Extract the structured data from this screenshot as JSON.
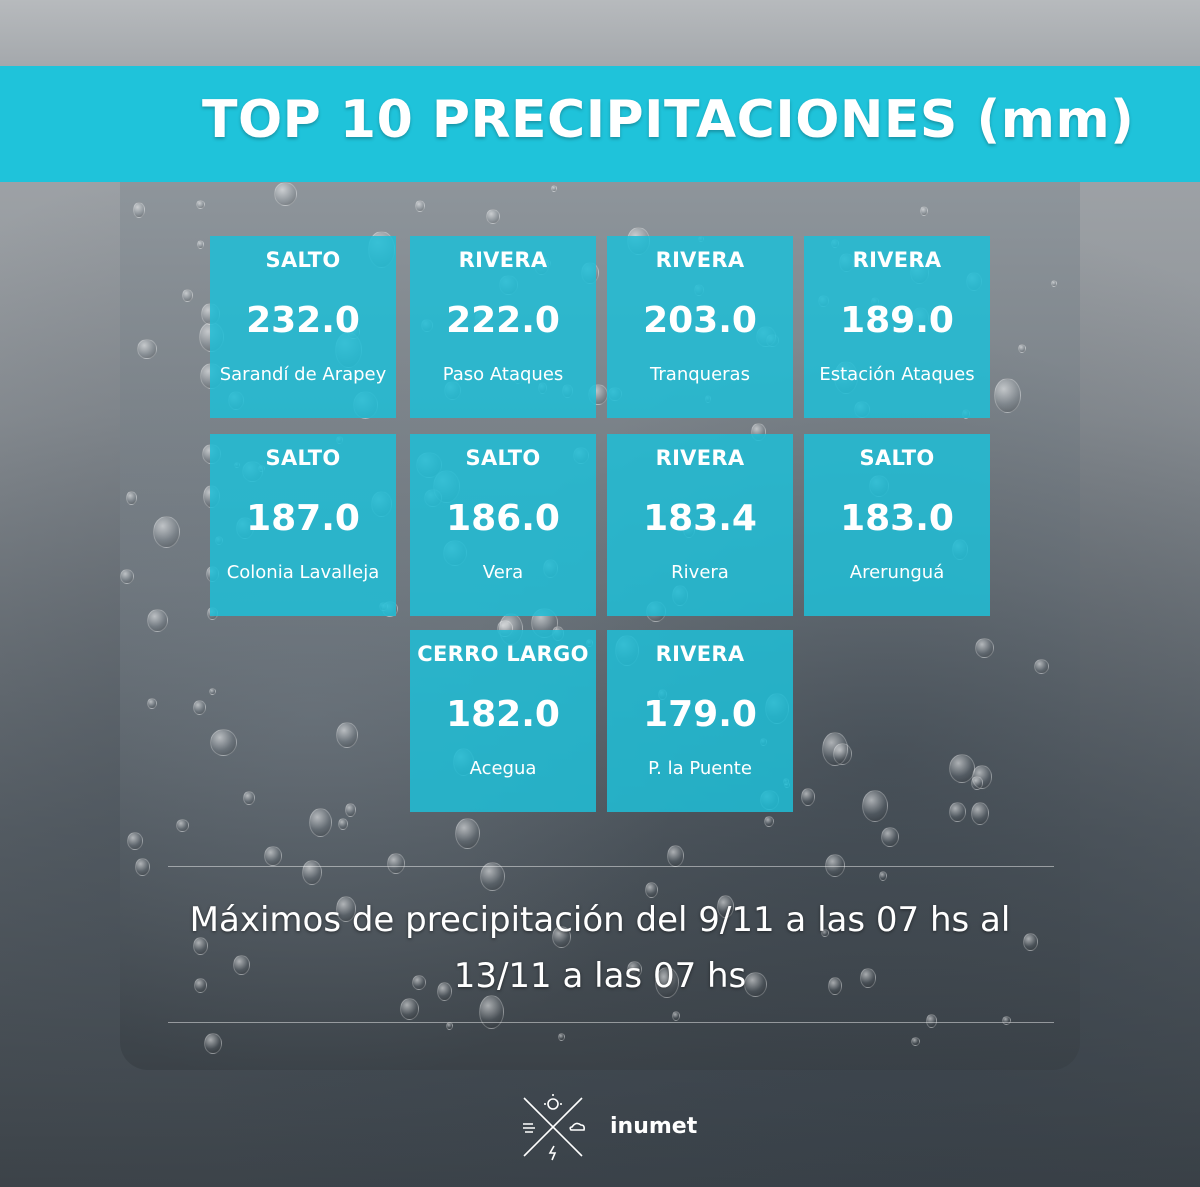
{
  "title": "TOP 10 PRECIPITACIONES (mm)",
  "stations": [
    {
      "department": "SALTO",
      "value": "232.0",
      "place": "Sarandí de Arapey"
    },
    {
      "department": "RIVERA",
      "value": "222.0",
      "place": "Paso Ataques"
    },
    {
      "department": "RIVERA",
      "value": "203.0",
      "place": "Tranqueras"
    },
    {
      "department": "RIVERA",
      "value": "189.0",
      "place": "Estación Ataques"
    },
    {
      "department": "SALTO",
      "value": "187.0",
      "place": "Colonia Lavalleja"
    },
    {
      "department": "SALTO",
      "value": "186.0",
      "place": "Vera"
    },
    {
      "department": "RIVERA",
      "value": "183.4",
      "place": "Rivera"
    },
    {
      "department": "SALTO",
      "value": "183.0",
      "place": "Arerunguá"
    },
    {
      "department": "CERRO LARGO",
      "value": "182.0",
      "place": "Acegua"
    },
    {
      "department": "RIVERA",
      "value": "179.0",
      "place": "P. la Puente"
    }
  ],
  "footnote": {
    "line1": "Máximos de precipitación del 9/11 a las 07 hs al",
    "line2": "13/11 a las 07 hs"
  },
  "brand": {
    "name": "inumet",
    "icon": "weather-logo-icon"
  },
  "colors": {
    "banner": "#1fc3da",
    "tile": "#1fbed6"
  }
}
